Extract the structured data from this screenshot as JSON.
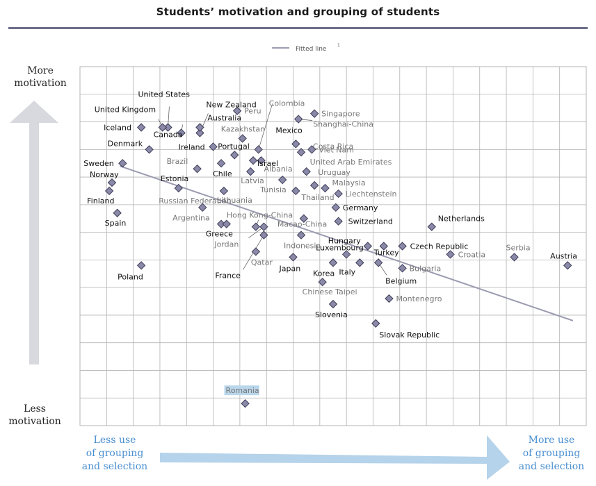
{
  "page": {
    "title": "Students’ motivation and grouping of students",
    "y_top_label": [
      "More",
      "motivation"
    ],
    "y_bottom_label": [
      "Less",
      "motivation"
    ],
    "x_left_label": [
      "Less use",
      "of grouping",
      "and selection"
    ],
    "x_right_label": [
      "More use",
      "of grouping",
      "and selection"
    ]
  },
  "colors": {
    "title_rule": "#6c6d8a",
    "marker_fill": "#8a89a8",
    "marker_stroke": "#3e3d5a",
    "grid": "#b3b3b3",
    "fitted_line": "#9b9bb2",
    "left_arrow": "#d8d9de",
    "bottom_arrow": "#b5d3ea",
    "x_label_color": "#4a8fd0",
    "highlight": "#b9d6ea"
  },
  "chart_data": {
    "type": "scatter",
    "title": "Students’ motivation and grouping of students",
    "xlabel": "Less use of grouping and selection → More use of grouping and selection",
    "ylabel": "Less motivation → More motivation",
    "grid": true,
    "legend": {
      "position": "top-center",
      "entries": [
        "Fitted line",
        "1"
      ]
    },
    "fitted_line": {
      "x": [
        0.5,
        17.5
      ],
      "y": [
        9.4,
        3.8
      ]
    },
    "points": [
      {
        "name": "United States",
        "x": 2.3,
        "y": 10.8,
        "style": "black"
      },
      {
        "name": "United Kingdom",
        "x": 2.1,
        "y": 10.8,
        "style": "black"
      },
      {
        "name": "Iceland",
        "x": 1.3,
        "y": 10.8,
        "style": "black"
      },
      {
        "name": "Canada",
        "x": 2.8,
        "y": 10.6,
        "style": "black"
      },
      {
        "name": "New Zealand",
        "x": 3.5,
        "y": 10.6,
        "style": "black"
      },
      {
        "name": "Australia",
        "x": 3.5,
        "y": 10.8,
        "style": "black"
      },
      {
        "name": "Peru",
        "x": 4.9,
        "y": 11.4,
        "style": "gray"
      },
      {
        "name": "Kazakhstan",
        "x": 5.1,
        "y": 10.4,
        "style": "gray"
      },
      {
        "name": "Denmark",
        "x": 1.6,
        "y": 10.0,
        "style": "black"
      },
      {
        "name": "Ireland",
        "x": 4.0,
        "y": 10.1,
        "style": "black"
      },
      {
        "name": "Portugal",
        "x": 4.8,
        "y": 9.8,
        "style": "black"
      },
      {
        "name": "Colombia",
        "x": 5.7,
        "y": 10.0,
        "style": "gray"
      },
      {
        "name": "Singapore",
        "x": 7.8,
        "y": 11.3,
        "style": "gray"
      },
      {
        "name": "Shanghai-China",
        "x": 7.2,
        "y": 11.1,
        "style": "gray"
      },
      {
        "name": "Mexico",
        "x": 7.1,
        "y": 10.2,
        "style": "black"
      },
      {
        "name": "Costa Rica",
        "x": 7.3,
        "y": 9.9,
        "style": "gray"
      },
      {
        "name": "Viet Nam",
        "x": 7.7,
        "y": 10.0,
        "style": "gray"
      },
      {
        "name": "Sweden",
        "x": 0.6,
        "y": 9.5,
        "style": "black"
      },
      {
        "name": "Brazil",
        "x": 3.4,
        "y": 9.3,
        "style": "gray"
      },
      {
        "name": "Chile",
        "x": 4.3,
        "y": 9.5,
        "style": "black"
      },
      {
        "name": "Albania",
        "x": 5.8,
        "y": 9.6,
        "style": "gray"
      },
      {
        "name": "Israel",
        "x": 5.5,
        "y": 9.6,
        "style": "black"
      },
      {
        "name": "Latvia",
        "x": 5.4,
        "y": 9.2,
        "style": "gray"
      },
      {
        "name": "United Arab Emirates",
        "x": 7.5,
        "y": 9.2,
        "style": "gray"
      },
      {
        "name": "Uruguay",
        "x": 7.8,
        "y": 8.7,
        "style": "gray"
      },
      {
        "name": "Norway",
        "x": 0.2,
        "y": 8.8,
        "style": "black"
      },
      {
        "name": "Estonia",
        "x": 2.7,
        "y": 8.6,
        "style": "black"
      },
      {
        "name": "Malaysia",
        "x": 8.2,
        "y": 8.6,
        "style": "gray"
      },
      {
        "name": "Tunisia",
        "x": 6.6,
        "y": 8.9,
        "style": "gray"
      },
      {
        "name": "Thailand",
        "x": 7.1,
        "y": 8.5,
        "style": "gray"
      },
      {
        "name": "Liechtenstein",
        "x": 8.7,
        "y": 8.4,
        "style": "gray"
      },
      {
        "name": "Finland",
        "x": 0.1,
        "y": 8.5,
        "style": "black"
      },
      {
        "name": "Lithuania",
        "x": 4.4,
        "y": 8.5,
        "style": "gray"
      },
      {
        "name": "Russian Federation",
        "x": 3.6,
        "y": 7.9,
        "style": "gray"
      },
      {
        "name": "Germany",
        "x": 8.6,
        "y": 7.9,
        "style": "black"
      },
      {
        "name": "Spain",
        "x": 0.4,
        "y": 7.7,
        "style": "black"
      },
      {
        "name": "Hong Kong-China",
        "x": 5.6,
        "y": 7.2,
        "style": "gray"
      },
      {
        "name": "Argentina",
        "x": 4.3,
        "y": 7.3,
        "style": "gray"
      },
      {
        "name": "Greece",
        "x": 4.5,
        "y": 7.3,
        "style": "black"
      },
      {
        "name": "Macao-China",
        "x": 7.4,
        "y": 7.5,
        "style": "gray"
      },
      {
        "name": "Switzerland",
        "x": 8.7,
        "y": 7.4,
        "style": "black"
      },
      {
        "name": "Netherlands",
        "x": 12.2,
        "y": 7.2,
        "style": "black"
      },
      {
        "name": "Jordan",
        "x": 5.9,
        "y": 7.2,
        "style": "gray"
      },
      {
        "name": "France",
        "x": 5.9,
        "y": 6.9,
        "style": "black"
      },
      {
        "name": "Hungary",
        "x": 9.8,
        "y": 6.5,
        "style": "black"
      },
      {
        "name": "Czech Republic",
        "x": 11.1,
        "y": 6.5,
        "style": "black"
      },
      {
        "name": "Indonesia",
        "x": 7.3,
        "y": 6.9,
        "style": "gray"
      },
      {
        "name": "Qatar",
        "x": 5.6,
        "y": 6.3,
        "style": "gray"
      },
      {
        "name": "Croatia",
        "x": 12.9,
        "y": 6.2,
        "style": "gray"
      },
      {
        "name": "Serbia",
        "x": 15.3,
        "y": 6.1,
        "style": "gray"
      },
      {
        "name": "Luxembourg",
        "x": 9.0,
        "y": 6.2,
        "style": "black"
      },
      {
        "name": "Turkey",
        "x": 10.4,
        "y": 6.5,
        "style": "black"
      },
      {
        "name": "Austria",
        "x": 17.3,
        "y": 5.8,
        "style": "black"
      },
      {
        "name": "Poland",
        "x": 1.3,
        "y": 5.8,
        "style": "black"
      },
      {
        "name": "Japan",
        "x": 7.0,
        "y": 6.1,
        "style": "black"
      },
      {
        "name": "Korea",
        "x": 8.5,
        "y": 5.9,
        "style": "black"
      },
      {
        "name": "Italy",
        "x": 9.5,
        "y": 5.9,
        "style": "black"
      },
      {
        "name": "Belgium",
        "x": 10.2,
        "y": 5.9,
        "style": "black"
      },
      {
        "name": "Bulgaria",
        "x": 11.1,
        "y": 5.7,
        "style": "gray"
      },
      {
        "name": "Chinese Taipei",
        "x": 8.1,
        "y": 5.2,
        "style": "gray"
      },
      {
        "name": "Montenegro",
        "x": 10.6,
        "y": 4.6,
        "style": "gray"
      },
      {
        "name": "Slovenia",
        "x": 8.5,
        "y": 4.4,
        "style": "black"
      },
      {
        "name": "Slovak Republic",
        "x": 10.1,
        "y": 3.7,
        "style": "black"
      },
      {
        "name": "Romania",
        "x": 5.2,
        "y": 0.8,
        "style": "gray",
        "highlight": true
      }
    ],
    "xlim": [
      -1,
      18
    ],
    "ylim": [
      0,
      13
    ]
  }
}
